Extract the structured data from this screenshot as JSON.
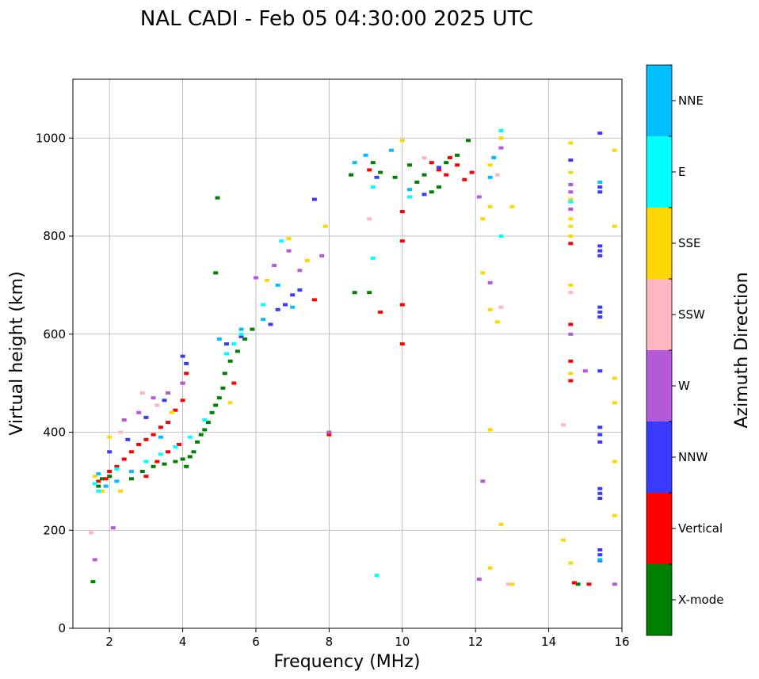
{
  "chart_data": {
    "type": "scatter",
    "title": "NAL CADI - Feb 05 04:30:00 2025 UTC",
    "xlabel": "Frequency (MHz)",
    "ylabel": "Virtual height (km)",
    "xlim": [
      1,
      16
    ],
    "ylim": [
      0,
      1120
    ],
    "xticks": [
      2,
      4,
      6,
      8,
      10,
      12,
      14,
      16
    ],
    "yticks": [
      0,
      200,
      400,
      600,
      800,
      1000
    ],
    "grid": true,
    "colorbar": {
      "title": "Azimuth Direction",
      "categories": [
        {
          "name": "X-mode",
          "color": "#008000"
        },
        {
          "name": "Vertical",
          "color": "#ff0000"
        },
        {
          "name": "NNW",
          "color": "#3a3aff"
        },
        {
          "name": "W",
          "color": "#b45ad8"
        },
        {
          "name": "SSW",
          "color": "#ffb6c1"
        },
        {
          "name": "SSE",
          "color": "#ffd700"
        },
        {
          "name": "E",
          "color": "#00ffff"
        },
        {
          "name": "NNE",
          "color": "#00bfff"
        }
      ]
    },
    "series": [
      {
        "name": "X-mode",
        "points": [
          [
            1.55,
            95
          ],
          [
            1.7,
            290
          ],
          [
            1.8,
            305
          ],
          [
            2.0,
            310
          ],
          [
            2.6,
            305
          ],
          [
            2.9,
            320
          ],
          [
            3.2,
            330
          ],
          [
            3.5,
            335
          ],
          [
            3.8,
            340
          ],
          [
            4.0,
            345
          ],
          [
            4.1,
            330
          ],
          [
            4.2,
            350
          ],
          [
            4.3,
            360
          ],
          [
            4.4,
            380
          ],
          [
            4.5,
            395
          ],
          [
            4.6,
            405
          ],
          [
            4.7,
            420
          ],
          [
            4.8,
            440
          ],
          [
            4.9,
            455
          ],
          [
            5.0,
            470
          ],
          [
            5.1,
            490
          ],
          [
            5.15,
            520
          ],
          [
            5.3,
            545
          ],
          [
            5.5,
            565
          ],
          [
            5.7,
            590
          ],
          [
            5.9,
            610
          ],
          [
            4.9,
            725
          ],
          [
            4.95,
            878
          ],
          [
            9.2,
            950
          ],
          [
            9.4,
            930
          ],
          [
            9.8,
            920
          ],
          [
            10.2,
            945
          ],
          [
            10.4,
            910
          ],
          [
            10.6,
            925
          ],
          [
            10.8,
            890
          ],
          [
            11.0,
            900
          ],
          [
            11.2,
            950
          ],
          [
            11.5,
            965
          ],
          [
            11.8,
            995
          ],
          [
            14.8,
            90
          ],
          [
            8.7,
            685
          ],
          [
            9.1,
            685
          ],
          [
            8.6,
            925
          ]
        ]
      },
      {
        "name": "Vertical",
        "points": [
          [
            1.7,
            300
          ],
          [
            1.9,
            305
          ],
          [
            2.0,
            320
          ],
          [
            2.2,
            330
          ],
          [
            2.4,
            345
          ],
          [
            2.6,
            360
          ],
          [
            2.8,
            375
          ],
          [
            3.0,
            385
          ],
          [
            3.2,
            395
          ],
          [
            3.4,
            410
          ],
          [
            3.6,
            420
          ],
          [
            3.8,
            445
          ],
          [
            4.0,
            465
          ],
          [
            4.0,
            500
          ],
          [
            3.0,
            310
          ],
          [
            3.3,
            340
          ],
          [
            3.6,
            360
          ],
          [
            3.9,
            375
          ],
          [
            4.1,
            520
          ],
          [
            5.4,
            500
          ],
          [
            7.6,
            670
          ],
          [
            8.0,
            395
          ],
          [
            9.1,
            935
          ],
          [
            9.4,
            645
          ],
          [
            10.0,
            660
          ],
          [
            10.0,
            580
          ],
          [
            10.0,
            790
          ],
          [
            10.0,
            850
          ],
          [
            10.8,
            950
          ],
          [
            11.0,
            935
          ],
          [
            11.2,
            925
          ],
          [
            11.3,
            960
          ],
          [
            11.5,
            945
          ],
          [
            11.7,
            915
          ],
          [
            11.9,
            930
          ],
          [
            14.6,
            620
          ],
          [
            14.6,
            545
          ],
          [
            14.6,
            505
          ],
          [
            14.6,
            785
          ],
          [
            14.7,
            93
          ],
          [
            15.1,
            90
          ]
        ]
      },
      {
        "name": "NNW",
        "points": [
          [
            2.0,
            360
          ],
          [
            2.5,
            385
          ],
          [
            3.0,
            430
          ],
          [
            3.5,
            465
          ],
          [
            4.0,
            555
          ],
          [
            4.1,
            540
          ],
          [
            6.4,
            620
          ],
          [
            6.6,
            650
          ],
          [
            6.8,
            660
          ],
          [
            7.0,
            680
          ],
          [
            7.2,
            690
          ],
          [
            7.6,
            875
          ],
          [
            9.3,
            920
          ],
          [
            10.6,
            885
          ],
          [
            11.0,
            940
          ],
          [
            14.6,
            955
          ],
          [
            15.4,
            1010
          ],
          [
            15.4,
            900
          ],
          [
            15.4,
            890
          ],
          [
            15.4,
            780
          ],
          [
            15.4,
            770
          ],
          [
            15.4,
            760
          ],
          [
            15.4,
            655
          ],
          [
            15.4,
            645
          ],
          [
            15.4,
            635
          ],
          [
            15.4,
            525
          ],
          [
            15.4,
            410
          ],
          [
            15.4,
            395
          ],
          [
            15.4,
            380
          ],
          [
            15.4,
            285
          ],
          [
            15.4,
            275
          ],
          [
            15.4,
            265
          ],
          [
            15.4,
            160
          ],
          [
            15.4,
            150
          ],
          [
            15.4,
            138
          ],
          [
            5.2,
            580
          ],
          [
            5.6,
            595
          ]
        ]
      },
      {
        "name": "W",
        "points": [
          [
            1.6,
            140
          ],
          [
            2.1,
            205
          ],
          [
            2.4,
            425
          ],
          [
            2.8,
            440
          ],
          [
            3.2,
            470
          ],
          [
            3.6,
            480
          ],
          [
            4.0,
            500
          ],
          [
            6.0,
            715
          ],
          [
            6.5,
            740
          ],
          [
            6.9,
            770
          ],
          [
            7.2,
            730
          ],
          [
            7.8,
            760
          ],
          [
            8.0,
            400
          ],
          [
            12.1,
            880
          ],
          [
            12.2,
            300
          ],
          [
            12.4,
            705
          ],
          [
            12.7,
            980
          ],
          [
            14.6,
            905
          ],
          [
            14.6,
            890
          ],
          [
            14.6,
            855
          ],
          [
            14.6,
            600
          ],
          [
            15.0,
            525
          ],
          [
            15.8,
            90
          ],
          [
            12.1,
            100
          ]
        ]
      },
      {
        "name": "SSW",
        "points": [
          [
            1.5,
            195
          ],
          [
            2.3,
            400
          ],
          [
            2.9,
            480
          ],
          [
            3.3,
            455
          ],
          [
            9.1,
            835
          ],
          [
            10.6,
            960
          ],
          [
            12.6,
            925
          ],
          [
            12.7,
            655
          ],
          [
            14.6,
            685
          ],
          [
            14.4,
            415
          ],
          [
            12.9,
            90
          ]
        ]
      },
      {
        "name": "SSE",
        "points": [
          [
            1.6,
            310
          ],
          [
            1.8,
            280
          ],
          [
            2.0,
            390
          ],
          [
            2.3,
            280
          ],
          [
            3.7,
            440
          ],
          [
            5.3,
            460
          ],
          [
            6.3,
            710
          ],
          [
            6.9,
            795
          ],
          [
            7.4,
            750
          ],
          [
            7.9,
            820
          ],
          [
            10.0,
            995
          ],
          [
            12.2,
            725
          ],
          [
            12.2,
            835
          ],
          [
            12.4,
            945
          ],
          [
            12.4,
            860
          ],
          [
            12.4,
            650
          ],
          [
            12.4,
            405
          ],
          [
            12.4,
            123
          ],
          [
            12.6,
            625
          ],
          [
            12.7,
            212
          ],
          [
            12.7,
            1000
          ],
          [
            13.0,
            860
          ],
          [
            14.4,
            180
          ],
          [
            14.6,
            990
          ],
          [
            14.6,
            930
          ],
          [
            14.6,
            875
          ],
          [
            14.6,
            835
          ],
          [
            14.6,
            820
          ],
          [
            14.6,
            800
          ],
          [
            14.6,
            700
          ],
          [
            14.6,
            520
          ],
          [
            14.6,
            133
          ],
          [
            15.8,
            975
          ],
          [
            15.8,
            820
          ],
          [
            15.8,
            510
          ],
          [
            15.8,
            460
          ],
          [
            15.8,
            340
          ],
          [
            15.8,
            230
          ],
          [
            13.0,
            90
          ]
        ]
      },
      {
        "name": "E",
        "points": [
          [
            1.6,
            295
          ],
          [
            1.7,
            280
          ],
          [
            2.2,
            325
          ],
          [
            3.0,
            340
          ],
          [
            3.4,
            355
          ],
          [
            3.8,
            370
          ],
          [
            4.2,
            390
          ],
          [
            4.6,
            425
          ],
          [
            5.2,
            560
          ],
          [
            5.4,
            580
          ],
          [
            5.6,
            600
          ],
          [
            6.2,
            660
          ],
          [
            6.7,
            790
          ],
          [
            9.2,
            755
          ],
          [
            9.2,
            900
          ],
          [
            9.3,
            108
          ],
          [
            10.2,
            880
          ],
          [
            12.7,
            1015
          ],
          [
            12.7,
            800
          ],
          [
            14.6,
            870
          ]
        ]
      },
      {
        "name": "NNE",
        "points": [
          [
            1.7,
            315
          ],
          [
            1.9,
            290
          ],
          [
            2.2,
            300
          ],
          [
            2.6,
            320
          ],
          [
            3.4,
            390
          ],
          [
            5.0,
            590
          ],
          [
            5.6,
            610
          ],
          [
            6.2,
            630
          ],
          [
            6.6,
            700
          ],
          [
            7.0,
            655
          ],
          [
            8.7,
            950
          ],
          [
            9.0,
            965
          ],
          [
            9.7,
            975
          ],
          [
            10.2,
            895
          ],
          [
            12.4,
            920
          ],
          [
            12.5,
            960
          ],
          [
            15.4,
            140
          ],
          [
            15.4,
            910
          ]
        ]
      }
    ]
  }
}
